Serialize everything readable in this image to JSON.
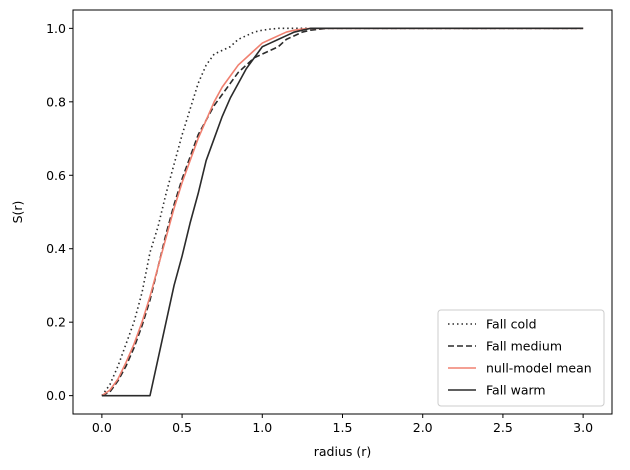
{
  "chart_data": {
    "type": "line",
    "xlabel": "radius (r)",
    "ylabel": "S(r)",
    "xlim": [
      -0.18,
      3.18
    ],
    "ylim": [
      -0.05,
      1.05
    ],
    "xticks": [
      0.0,
      0.5,
      1.0,
      1.5,
      2.0,
      2.5,
      3.0
    ],
    "xtick_labels": [
      "0.0",
      "0.5",
      "1.0",
      "1.5",
      "2.0",
      "2.5",
      "3.0"
    ],
    "yticks": [
      0.0,
      0.2,
      0.4,
      0.6,
      0.8,
      1.0
    ],
    "ytick_labels": [
      "0.0",
      "0.2",
      "0.4",
      "0.6",
      "0.8",
      "1.0"
    ],
    "grid": false,
    "legend_position": "lower-right",
    "series": [
      {
        "name": "Fall cold",
        "style": "dotted",
        "color": "#2b2b2b",
        "x": [
          0.0,
          0.05,
          0.1,
          0.15,
          0.2,
          0.25,
          0.3,
          0.35,
          0.4,
          0.45,
          0.5,
          0.55,
          0.6,
          0.65,
          0.7,
          0.75,
          0.8,
          0.85,
          0.9,
          0.95,
          1.0,
          1.05,
          1.1,
          1.15,
          1.2,
          1.3,
          3.0
        ],
        "y": [
          0.0,
          0.03,
          0.08,
          0.14,
          0.2,
          0.28,
          0.39,
          0.46,
          0.55,
          0.63,
          0.71,
          0.78,
          0.85,
          0.9,
          0.93,
          0.94,
          0.95,
          0.97,
          0.98,
          0.99,
          0.995,
          0.998,
          1.0,
          1.0,
          1.0,
          1.0,
          1.0
        ]
      },
      {
        "name": "Fall medium",
        "style": "dashed",
        "color": "#2b2b2b",
        "x": [
          0.0,
          0.05,
          0.1,
          0.15,
          0.2,
          0.25,
          0.3,
          0.35,
          0.4,
          0.45,
          0.5,
          0.55,
          0.6,
          0.65,
          0.7,
          0.75,
          0.8,
          0.85,
          0.9,
          0.95,
          1.0,
          1.05,
          1.1,
          1.15,
          1.2,
          1.25,
          1.3,
          1.4,
          3.0
        ],
        "y": [
          0.0,
          0.01,
          0.04,
          0.08,
          0.13,
          0.19,
          0.26,
          0.35,
          0.44,
          0.52,
          0.59,
          0.65,
          0.71,
          0.75,
          0.79,
          0.82,
          0.85,
          0.88,
          0.9,
          0.92,
          0.93,
          0.94,
          0.95,
          0.97,
          0.98,
          0.99,
          0.995,
          1.0,
          1.0
        ]
      },
      {
        "name": "null-model mean",
        "style": "solid",
        "color": "#f08070",
        "x": [
          0.0,
          0.05,
          0.1,
          0.15,
          0.2,
          0.25,
          0.3,
          0.35,
          0.4,
          0.45,
          0.5,
          0.55,
          0.6,
          0.65,
          0.7,
          0.75,
          0.8,
          0.85,
          0.9,
          0.95,
          1.0,
          1.05,
          1.1,
          1.15,
          1.2,
          1.25,
          1.3,
          1.4,
          3.0
        ],
        "y": [
          0.0,
          0.015,
          0.045,
          0.09,
          0.14,
          0.2,
          0.27,
          0.35,
          0.43,
          0.51,
          0.58,
          0.64,
          0.7,
          0.75,
          0.8,
          0.84,
          0.87,
          0.9,
          0.92,
          0.94,
          0.96,
          0.97,
          0.98,
          0.99,
          0.995,
          0.998,
          1.0,
          1.0,
          1.0
        ]
      },
      {
        "name": "Fall warm",
        "style": "solid",
        "color": "#2b2b2b",
        "x": [
          0.0,
          0.3,
          0.35,
          0.4,
          0.45,
          0.5,
          0.55,
          0.6,
          0.65,
          0.7,
          0.75,
          0.8,
          0.85,
          0.9,
          0.95,
          1.0,
          1.05,
          1.1,
          1.15,
          1.2,
          1.25,
          1.3,
          1.4,
          3.0
        ],
        "y": [
          0.0,
          0.0,
          0.1,
          0.2,
          0.3,
          0.38,
          0.47,
          0.55,
          0.64,
          0.7,
          0.76,
          0.81,
          0.85,
          0.89,
          0.92,
          0.95,
          0.96,
          0.97,
          0.98,
          0.99,
          0.995,
          1.0,
          1.0,
          1.0
        ]
      }
    ]
  }
}
